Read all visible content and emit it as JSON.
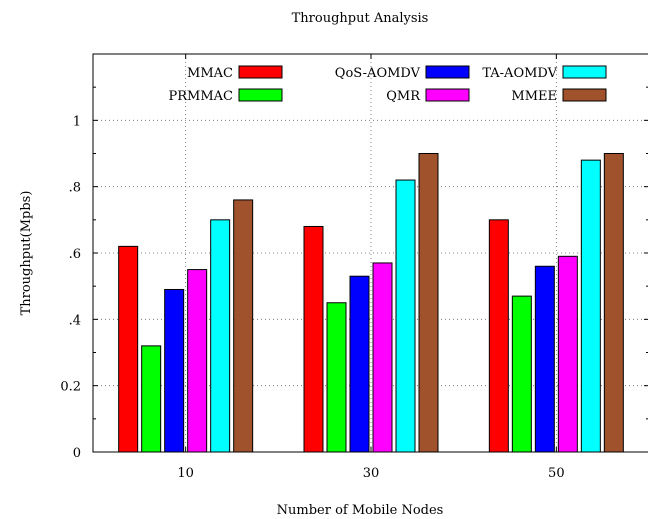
{
  "chart_data": {
    "type": "bar",
    "title": "Throughput Analysis",
    "xlabel": "Number of Mobile Nodes",
    "ylabel": "Throughput(Mpbs)",
    "categories": [
      "10",
      "30",
      "50"
    ],
    "ylim": [
      0,
      1.2
    ],
    "yticks": [
      {
        "value": 0,
        "label": "0"
      },
      {
        "value": 0.2,
        "label": "0.2"
      },
      {
        "value": 0.4,
        "label": ".4"
      },
      {
        "value": 0.6,
        "label": ".6"
      },
      {
        "value": 0.8,
        "label": ".8"
      },
      {
        "value": 1.0,
        "label": "1"
      }
    ],
    "grid": true,
    "legend_position": "top",
    "series": [
      {
        "name": "MMAC",
        "color": "#ff0000",
        "values": [
          0.62,
          0.68,
          0.7
        ]
      },
      {
        "name": "PRMMAC",
        "color": "#00ff00",
        "values": [
          0.32,
          0.45,
          0.47
        ]
      },
      {
        "name": "QoS-AOMDV",
        "color": "#0000ff",
        "values": [
          0.49,
          0.53,
          0.56
        ]
      },
      {
        "name": "QMR",
        "color": "#ff00ff",
        "values": [
          0.55,
          0.57,
          0.59
        ]
      },
      {
        "name": "TA-AOMDV",
        "color": "#00ffff",
        "values": [
          0.7,
          0.82,
          0.88
        ]
      },
      {
        "name": "MMEE",
        "color": "#a0522d",
        "values": [
          0.76,
          0.9,
          0.9
        ]
      }
    ]
  }
}
